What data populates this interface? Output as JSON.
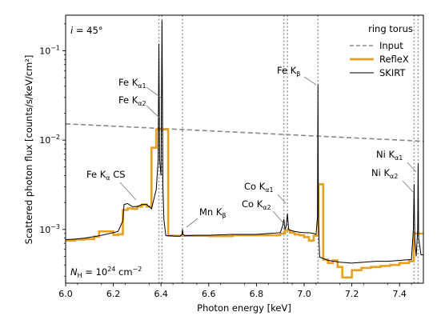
{
  "chart_data": {
    "type": "line",
    "xlabel": "Photon energy [keV]",
    "ylabel": "Scattered photon flux [counts/s/keV/cm²]",
    "xlim": [
      6.0,
      7.5
    ],
    "ylim": [
      0.00025,
      0.25
    ],
    "yscale": "log",
    "x_ticks": [
      "6.0",
      "6.2",
      "6.4",
      "6.6",
      "6.8",
      "7.0",
      "7.2",
      "7.4"
    ],
    "y_ticks": [
      {
        "base": "10",
        "exp": "−3",
        "value": 0.001
      },
      {
        "base": "10",
        "exp": "−2",
        "value": 0.01
      },
      {
        "base": "10",
        "exp": "−1",
        "value": 0.1
      }
    ],
    "grid": false,
    "legend": {
      "title": "ring torus",
      "placement": "top-right"
    },
    "annotation_incl": {
      "pre": "i",
      "post": " = 45°"
    },
    "annotation_nh": {
      "pre": "N",
      "sub": "H",
      "mid": " = 10",
      "sup": "24",
      "post": " cm",
      "sup2": "−2"
    },
    "line_annotations": [
      {
        "base": "Fe K",
        "sub": "α1"
      },
      {
        "base": "Fe K",
        "sub": "α2"
      },
      {
        "base": "Fe K",
        "sub": "β"
      },
      {
        "base": "Fe K",
        "sub": "α",
        "post": " CS"
      },
      {
        "base": "Mn K",
        "sub": "β"
      },
      {
        "base": "Co K",
        "sub": "α1"
      },
      {
        "base": "Co K",
        "sub": "α2"
      },
      {
        "base": "Ni K",
        "sub": "α1"
      },
      {
        "base": "Ni K",
        "sub": "α2"
      }
    ],
    "line_energies_keV": [
      6.391,
      6.404,
      6.49,
      6.915,
      6.93,
      7.058,
      7.461,
      7.478
    ],
    "series": [
      {
        "name": "Input",
        "color": "#888888",
        "style": "dashed",
        "x": [
          6.0,
          7.5
        ],
        "y": [
          0.0152,
          0.0097
        ]
      },
      {
        "name": "RefleX",
        "color": "#e8a020",
        "style": "step",
        "x": [
          6.0,
          6.04,
          6.08,
          6.12,
          6.14,
          6.2,
          6.22,
          6.24,
          6.26,
          6.28,
          6.3,
          6.32,
          6.34,
          6.36,
          6.38,
          6.42,
          6.43,
          6.5,
          6.6,
          6.7,
          6.8,
          6.9,
          6.92,
          6.94,
          6.96,
          6.98,
          7.0,
          7.02,
          7.04,
          7.06,
          7.08,
          7.1,
          7.12,
          7.14,
          7.16,
          7.2,
          7.24,
          7.28,
          7.32,
          7.36,
          7.4,
          7.44,
          7.46,
          7.48,
          7.5
        ],
        "y": [
          0.00075,
          0.00077,
          0.00078,
          0.00083,
          0.00095,
          0.00087,
          0.00088,
          0.00165,
          0.00172,
          0.0017,
          0.0018,
          0.0019,
          0.0018,
          0.0082,
          0.0132,
          0.0132,
          0.00085,
          0.00085,
          0.00084,
          0.00086,
          0.00086,
          0.0009,
          0.00098,
          0.00092,
          0.00088,
          0.00086,
          0.00082,
          0.00075,
          0.00085,
          0.0032,
          0.00046,
          0.00042,
          0.00045,
          0.00038,
          0.00029,
          0.00035,
          0.00037,
          0.00038,
          0.00039,
          0.0004,
          0.00042,
          0.00044,
          0.0009,
          0.0009,
          0.0009
        ]
      },
      {
        "name": "SKIRT",
        "color": "#000000",
        "style": "solid",
        "x": [
          6.0,
          6.04,
          6.08,
          6.12,
          6.16,
          6.2,
          6.22,
          6.24,
          6.245,
          6.26,
          6.28,
          6.3,
          6.32,
          6.34,
          6.36,
          6.38,
          6.388,
          6.391,
          6.394,
          6.4,
          6.404,
          6.408,
          6.412,
          6.42,
          6.44,
          6.46,
          6.48,
          6.488,
          6.49,
          6.492,
          6.5,
          6.55,
          6.6,
          6.65,
          6.7,
          6.75,
          6.8,
          6.85,
          6.9,
          6.91,
          6.915,
          6.92,
          6.925,
          6.93,
          6.935,
          6.94,
          6.96,
          6.98,
          7.0,
          7.02,
          7.04,
          7.05,
          7.056,
          7.058,
          7.06,
          7.065,
          7.1,
          7.15,
          7.2,
          7.25,
          7.3,
          7.35,
          7.4,
          7.45,
          7.458,
          7.461,
          7.464,
          7.47,
          7.476,
          7.478,
          7.48,
          7.49,
          7.5
        ],
        "y": [
          0.00077,
          0.00078,
          0.0008,
          0.00083,
          0.00087,
          0.00092,
          0.00095,
          0.00125,
          0.0019,
          0.00195,
          0.0018,
          0.0018,
          0.0019,
          0.0019,
          0.0017,
          0.0028,
          0.006,
          0.12,
          0.006,
          0.004,
          0.22,
          0.003,
          0.0013,
          0.00085,
          0.00085,
          0.00084,
          0.00084,
          0.00088,
          0.001,
          0.00088,
          0.00085,
          0.00086,
          0.00086,
          0.00087,
          0.00088,
          0.00088,
          0.00088,
          0.0009,
          0.00092,
          0.0011,
          0.0013,
          0.001,
          0.0011,
          0.0015,
          0.001,
          0.00098,
          0.00095,
          0.00093,
          0.00092,
          0.00092,
          0.0009,
          0.00088,
          0.0014,
          0.042,
          0.0012,
          0.00049,
          0.00045,
          0.00043,
          0.00042,
          0.00043,
          0.00044,
          0.00044,
          0.00045,
          0.00046,
          0.001,
          0.0032,
          0.00075,
          0.0005,
          0.001,
          0.0055,
          0.0008,
          0.00052,
          0.00052
        ]
      }
    ]
  }
}
